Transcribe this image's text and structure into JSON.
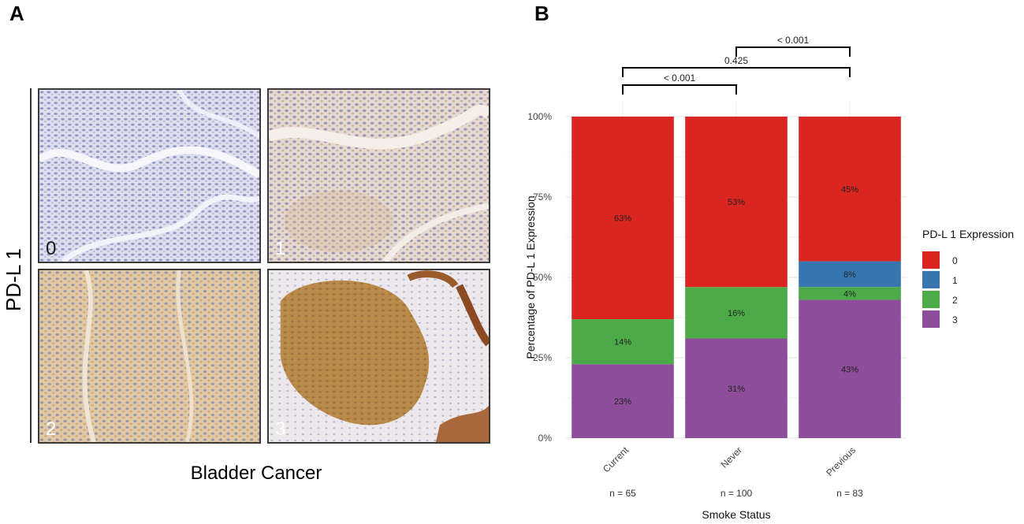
{
  "panel_a": {
    "label": "A",
    "row_label": "PD-L 1",
    "column_label": "Bladder Cancer",
    "images": [
      {
        "score": "0",
        "stain": "negative"
      },
      {
        "score": "1",
        "stain": "weak"
      },
      {
        "score": "2",
        "stain": "moderate"
      },
      {
        "score": "3",
        "stain": "strong"
      }
    ]
  },
  "panel_b": {
    "label": "B"
  },
  "chart_data": {
    "type": "bar",
    "stacked": true,
    "categories": [
      "Current",
      "Never",
      "Previous"
    ],
    "category_counts": [
      "n = 65",
      "n = 100",
      "n = 83"
    ],
    "xlabel": "Smoke Status",
    "ylabel": "Percentage of PD-L 1 Expression",
    "ylim": [
      0,
      100
    ],
    "yticks": [
      "0%",
      "25%",
      "50%",
      "75%",
      "100%"
    ],
    "legend_title": "PD-L 1 Expression",
    "legend_position": "right",
    "grid": true,
    "series": [
      {
        "name": "3",
        "color": "#8E4D9A",
        "values": [
          23,
          31,
          43
        ],
        "labels": [
          "23%",
          "31%",
          "43%"
        ]
      },
      {
        "name": "2",
        "color": "#4DAA48",
        "values": [
          14,
          16,
          4
        ],
        "labels": [
          "14%",
          "16%",
          "4%"
        ]
      },
      {
        "name": "1",
        "color": "#3776B0",
        "values": [
          0,
          0,
          8
        ],
        "labels": [
          "",
          "",
          "8%"
        ]
      },
      {
        "name": "0",
        "color": "#DA2520",
        "values": [
          63,
          53,
          45
        ],
        "labels": [
          "63%",
          "53%",
          "45%"
        ]
      }
    ],
    "legend_order": [
      "0",
      "1",
      "2",
      "3"
    ],
    "comparisons": [
      {
        "from": "Current",
        "to": "Never",
        "p": "< 0.001"
      },
      {
        "from": "Current",
        "to": "Previous",
        "p": "0.425"
      },
      {
        "from": "Never",
        "to": "Previous",
        "p": "< 0.001"
      }
    ]
  }
}
